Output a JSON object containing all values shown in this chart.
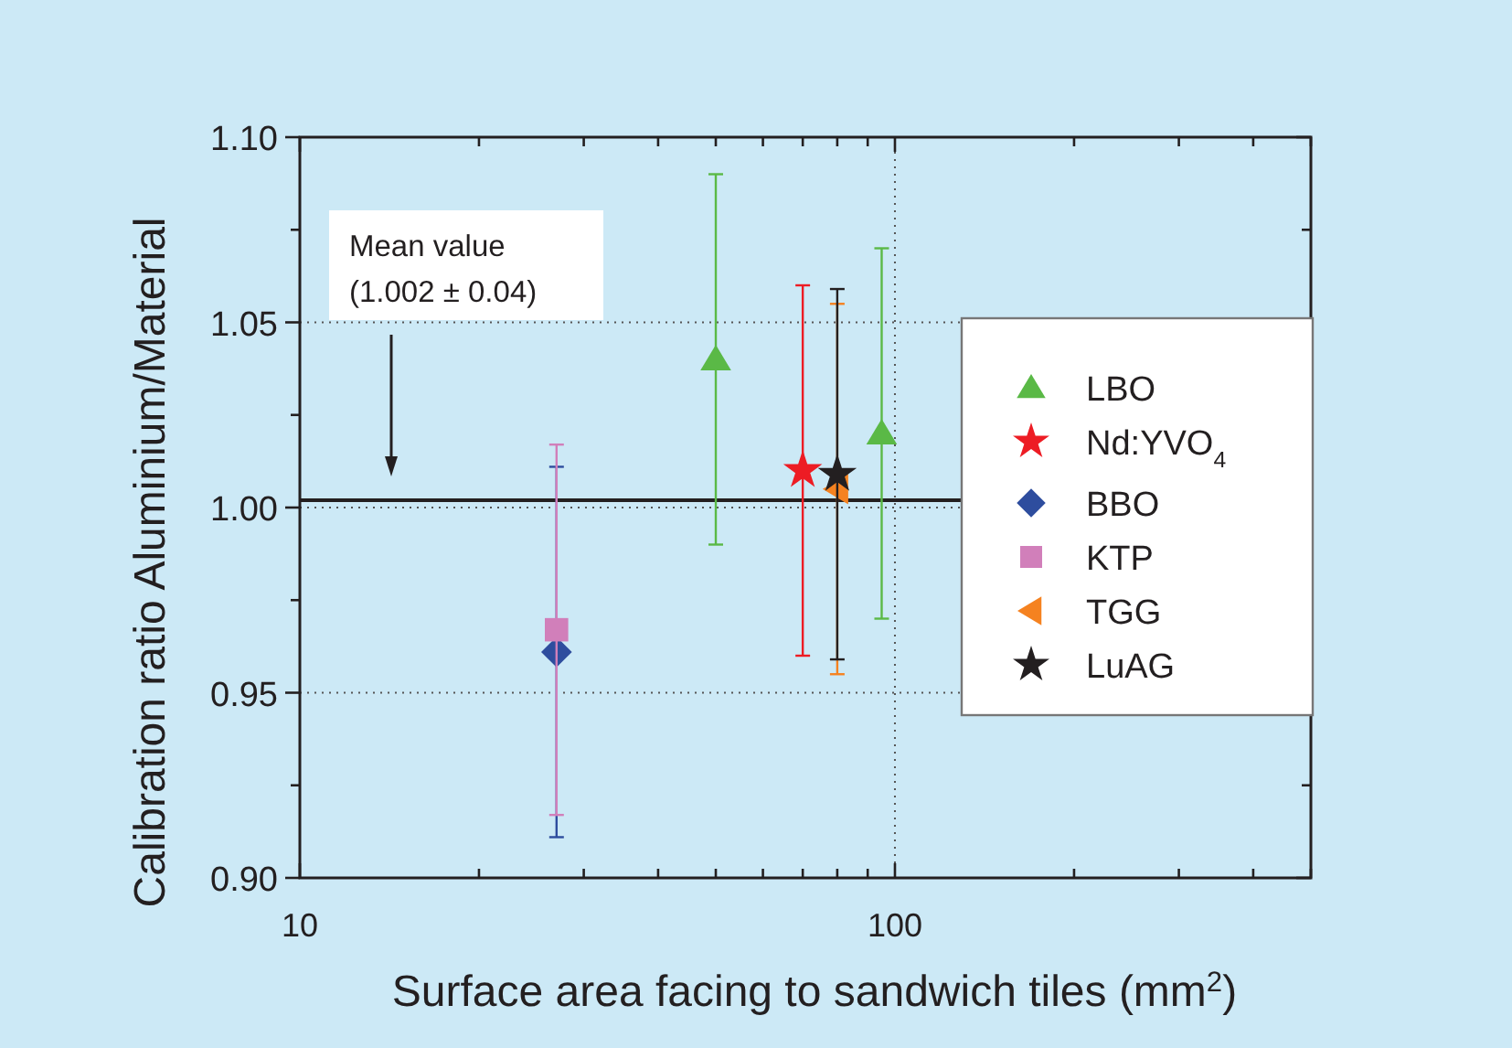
{
  "chart_data": {
    "type": "scatter",
    "xlabel": "Surface area facing to sandwich tiles (mm$^{2}$)",
    "ylabel": "Calibration ratio Aluminium/Material",
    "log": "x",
    "xlim": [
      10,
      500
    ],
    "ylim": [
      0.9,
      1.1
    ],
    "xticks": [
      10,
      {
        "value": 20,
        "label": null
      },
      {
        "value": 30,
        "label": null
      },
      {
        "value": 40,
        "label": null
      },
      {
        "value": 50,
        "label": null
      },
      {
        "value": 60,
        "label": null
      },
      {
        "value": 70,
        "label": null
      },
      {
        "value": 80,
        "label": null
      },
      {
        "value": 90,
        "label": null
      },
      100,
      {
        "value": 200,
        "label": null
      },
      {
        "value": 300,
        "label": null
      },
      {
        "value": 400,
        "label": null
      },
      {
        "value": 500,
        "label": null
      }
    ],
    "yticks": [
      {
        "value": 0.9,
        "label": "0.90"
      },
      {
        "value": 0.925,
        "label": null
      },
      {
        "value": 0.95,
        "label": "0.95"
      },
      {
        "value": 0.975,
        "label": null
      },
      {
        "value": 1.0,
        "label": "1.00"
      },
      {
        "value": 1.025,
        "label": null
      },
      {
        "value": 1.05,
        "label": "1.05"
      },
      {
        "value": 1.075,
        "label": null
      },
      {
        "value": 1.1,
        "label": "1.10"
      }
    ],
    "grid": true,
    "legend": "right",
    "ref_lines": [
      {
        "axis": "y",
        "value": 1.002,
        "color": "#231f20",
        "line_style": "solid"
      }
    ],
    "annotations": [
      "Mean value\n(1.002 ± 0.04)"
    ],
    "series": [
      {
        "name": "LBO",
        "color": "#5ab946",
        "marker": "triangle",
        "x": [
          50,
          95
        ],
        "values": [
          1.04,
          1.02
        ],
        "errors": [
          0.05,
          0.05
        ]
      },
      {
        "name": "Nd:YVO$_{4}$",
        "color": "#ed1c24",
        "marker": "star",
        "x": [
          70
        ],
        "values": [
          1.01
        ],
        "errors": [
          0.05
        ]
      },
      {
        "name": "BBO",
        "color": "#2e4d9e",
        "marker": "diamond",
        "x": [
          27
        ],
        "values": [
          0.961
        ],
        "errors": [
          0.05
        ]
      },
      {
        "name": "KTP",
        "color": "#d17fba",
        "marker": "square",
        "x": [
          27
        ],
        "values": [
          0.967
        ],
        "errors": [
          0.05
        ]
      },
      {
        "name": "TGG",
        "color": "#f58220",
        "marker": "triangle-left",
        "x": [
          80
        ],
        "values": [
          1.005
        ],
        "errors": [
          0.05
        ]
      },
      {
        "name": "LuAG",
        "color": "#231f20",
        "marker": "star",
        "x": [
          80
        ],
        "values": [
          1.009
        ],
        "errors": [
          0.05
        ]
      }
    ]
  }
}
